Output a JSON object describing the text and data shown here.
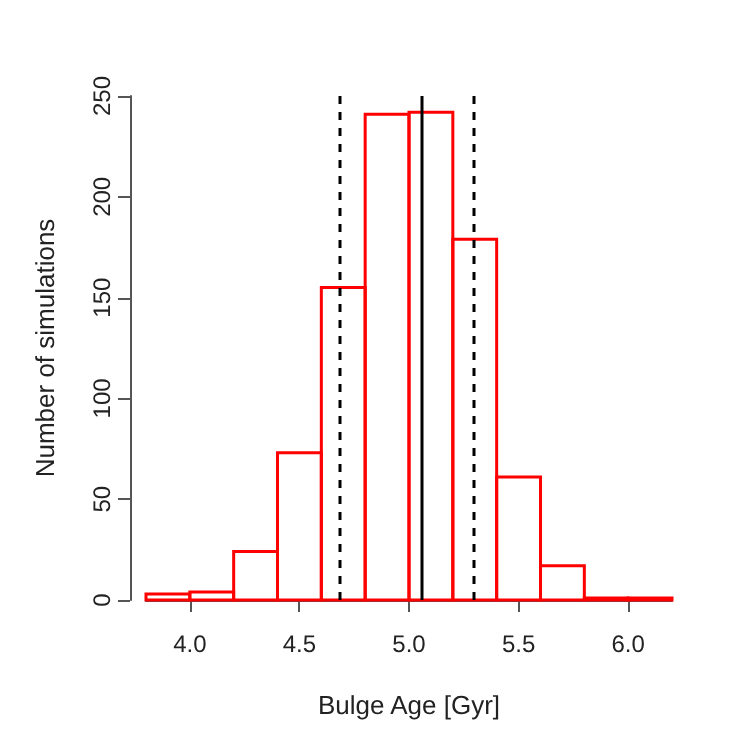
{
  "chart_data": {
    "type": "histogram",
    "xlabel": "Bulge Age [Gyr]",
    "ylabel": "Number of simulations",
    "bins": [
      3.8,
      4.0,
      4.2,
      4.4,
      4.6,
      4.8,
      5.0,
      5.2,
      5.4,
      5.6,
      5.8,
      6.0,
      6.2
    ],
    "values": [
      3,
      4,
      24,
      73,
      155,
      241,
      242,
      179,
      61,
      17,
      1,
      1
    ],
    "color": "#ff0000",
    "xlim": [
      3.8,
      6.2
    ],
    "xticks": [
      {
        "value": 4,
        "label": "4.0"
      },
      4.5,
      {
        "value": 5,
        "label": "5.0"
      },
      5.5,
      {
        "value": 6,
        "label": "6.0"
      }
    ],
    "ylim": [
      0,
      250
    ],
    "yticks": [
      0,
      50,
      100,
      150,
      200,
      250
    ],
    "ref_lines": [
      {
        "axis": "x",
        "value": 4.68,
        "color": "#000000",
        "line_style": "dashed"
      },
      {
        "axis": "x",
        "value": 5.06,
        "color": "#000000",
        "line_style": "solid"
      },
      {
        "axis": "x",
        "value": 5.29,
        "color": "#000000",
        "line_style": "dashed"
      }
    ],
    "grid": false
  }
}
